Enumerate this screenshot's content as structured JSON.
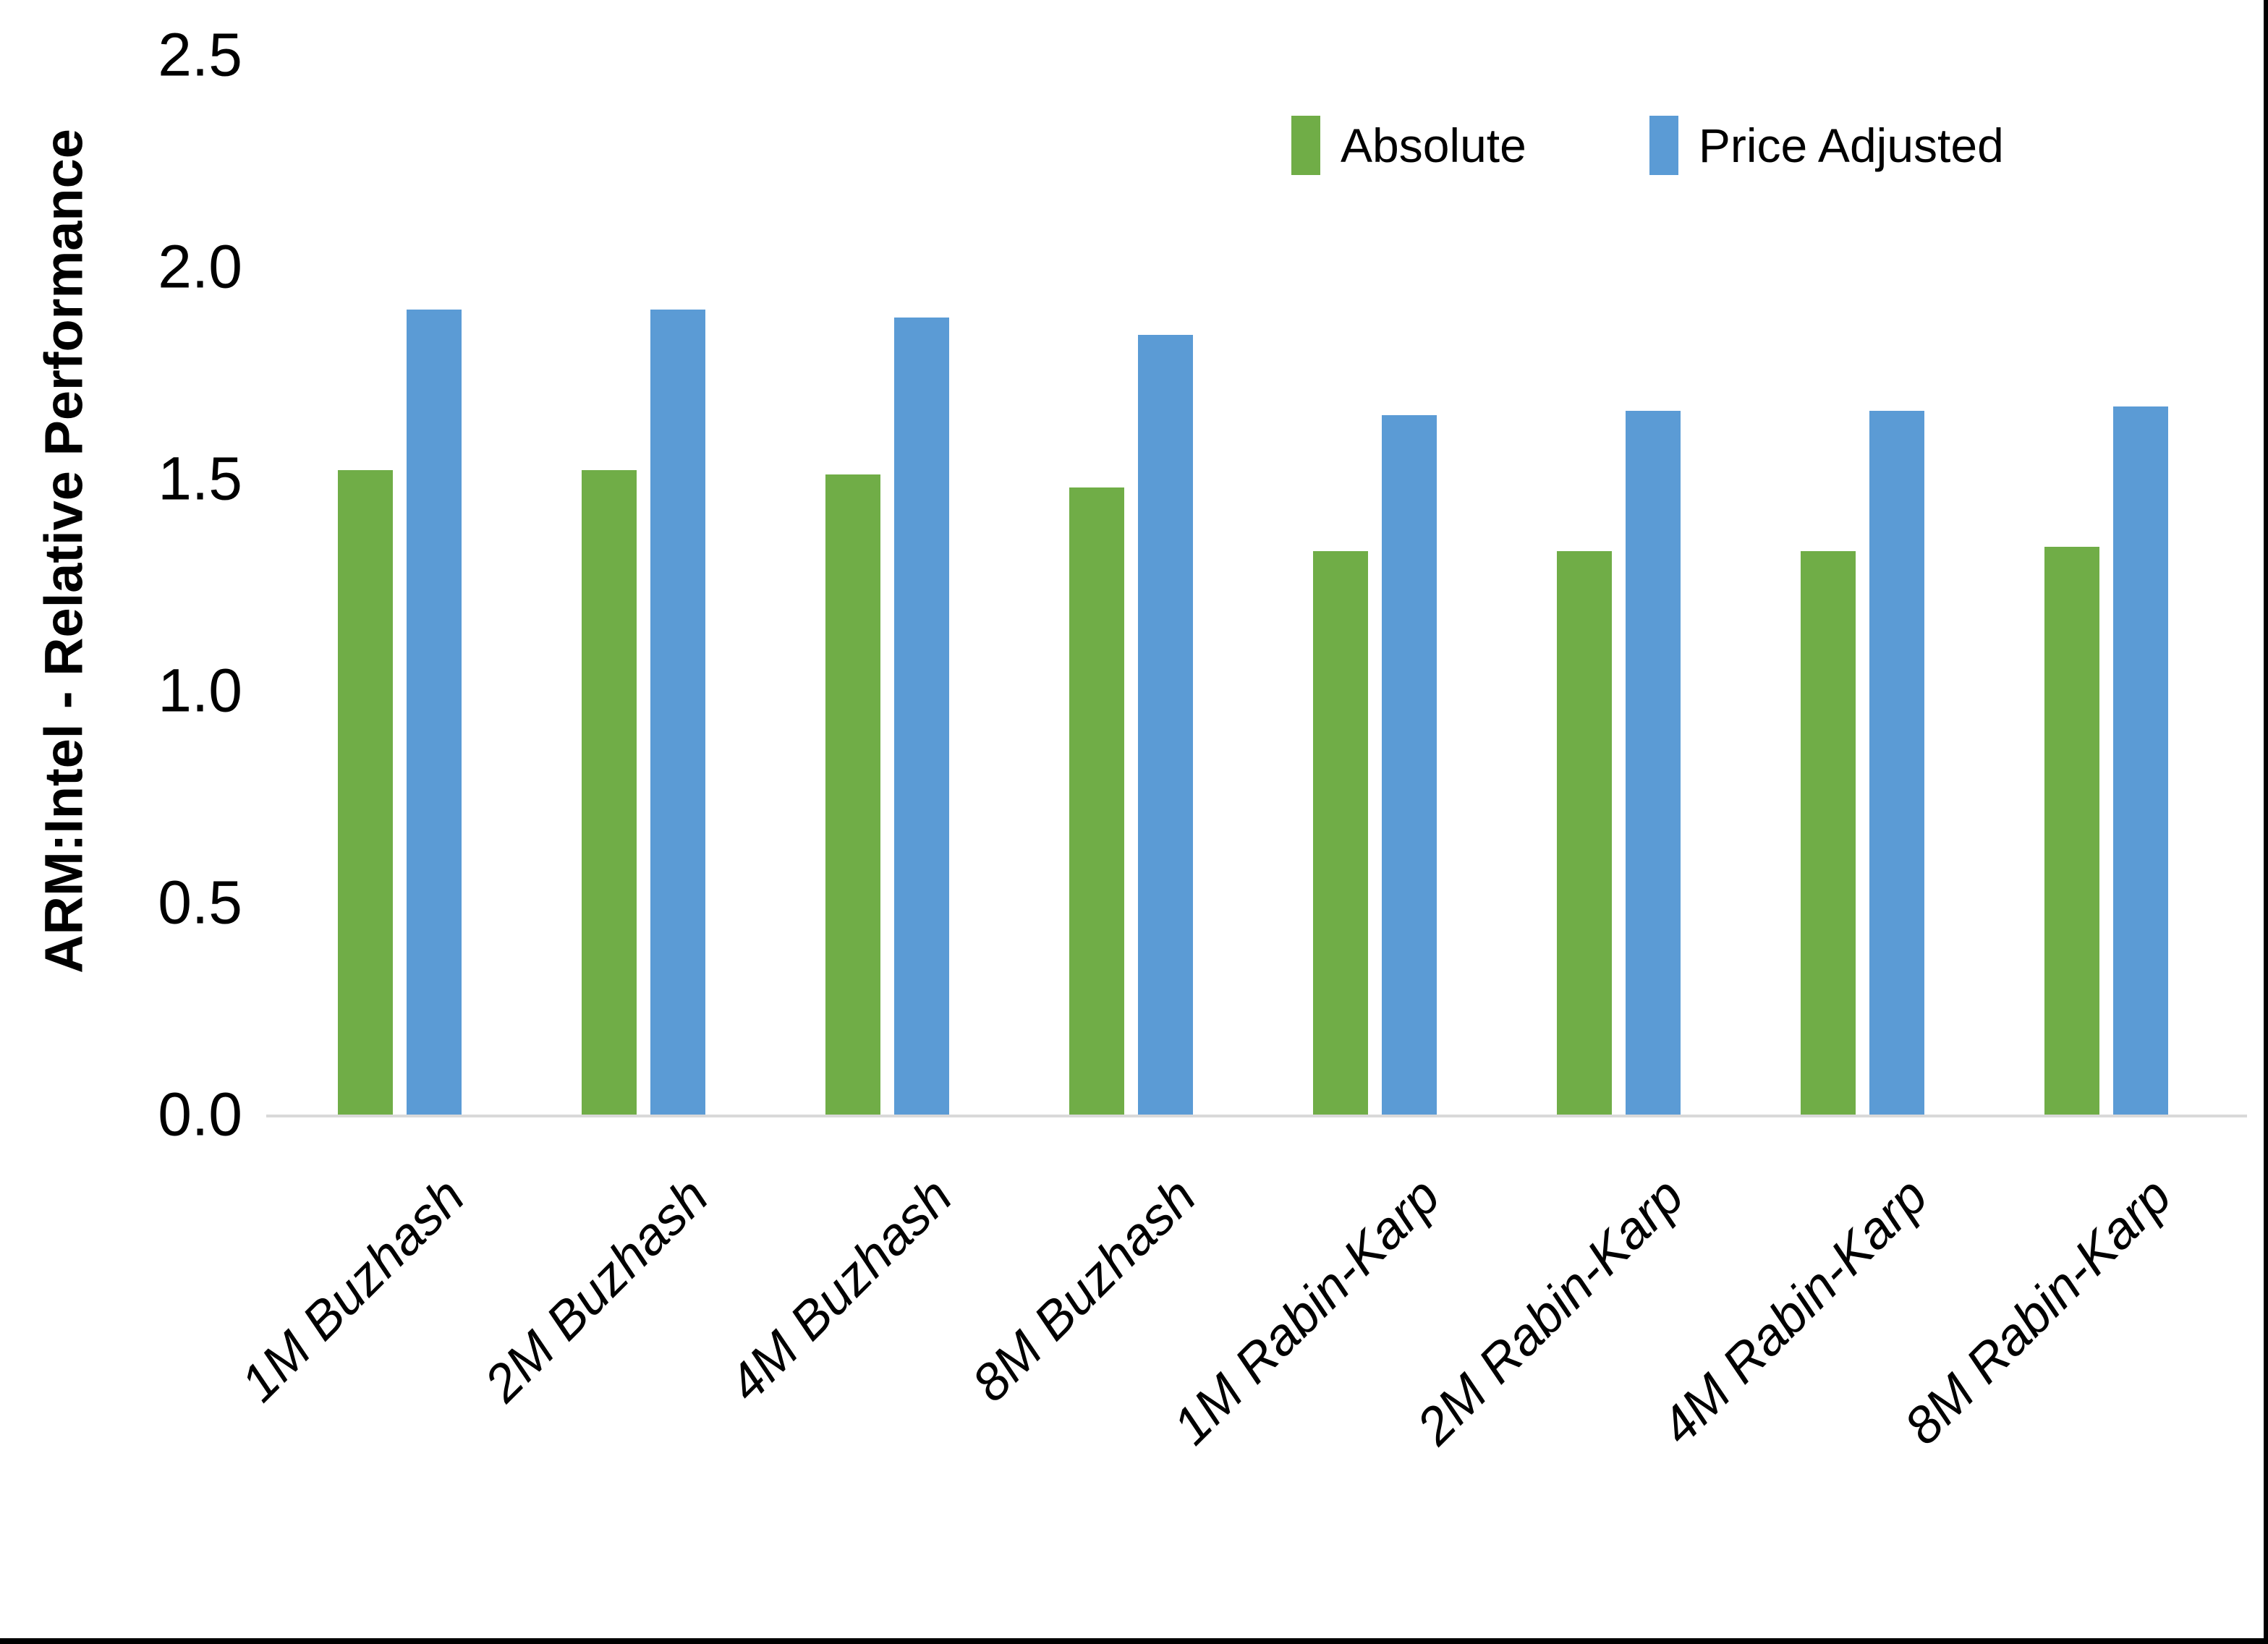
{
  "y_axis": {
    "title": "ARM:Intel - Relative Performance",
    "tick_labels": [
      "2.5",
      "2.0",
      "1.5",
      "1.0",
      "0.5",
      "0.0"
    ]
  },
  "legend": {
    "items": [
      {
        "label": "Absolute",
        "color": "#70AD47"
      },
      {
        "label": "Price Adjusted",
        "color": "#5B9BD5"
      }
    ]
  },
  "chart_data": {
    "type": "bar",
    "title": "",
    "xlabel": "",
    "ylabel": "ARM:Intel - Relative Performance",
    "ylim": [
      0,
      2.5
    ],
    "ytick_step": 0.5,
    "grid": false,
    "legend_position": "top-right",
    "categories": [
      "1M Buzhash",
      "2M Buzhash",
      "4M Buzhash",
      "8M Buzhash",
      "1M Rabin-Karp",
      "2M Rabin-Karp",
      "4M Rabin-Karp",
      "8M Rabin-Karp"
    ],
    "series": [
      {
        "name": "Absolute",
        "color": "#70AD47",
        "values": [
          1.52,
          1.52,
          1.51,
          1.48,
          1.33,
          1.33,
          1.33,
          1.34
        ]
      },
      {
        "name": "Price Adjusted",
        "color": "#5B9BD5",
        "values": [
          1.9,
          1.9,
          1.88,
          1.84,
          1.65,
          1.66,
          1.66,
          1.67
        ]
      }
    ]
  }
}
